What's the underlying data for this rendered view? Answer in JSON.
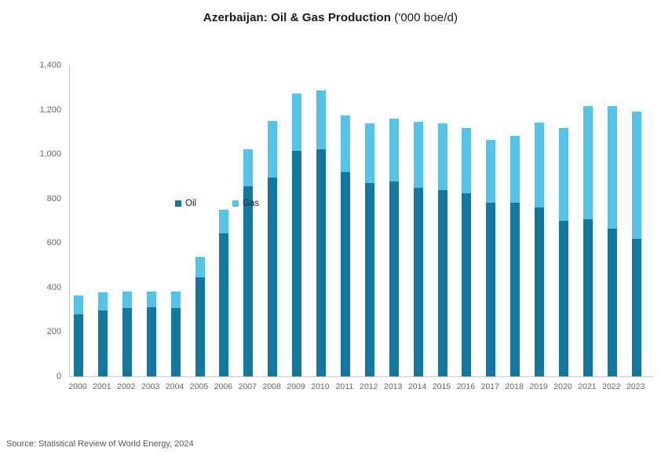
{
  "title": {
    "main": "Azerbaijan: Oil & Gas Production",
    "unit": " ('000 boe/d)"
  },
  "source": "Source: Statistical Review of World Energy, 2024",
  "colors": {
    "oil": "#11799f",
    "gas": "#53c3e8",
    "axis_line": "#c9c9c9",
    "tick_text": "#666666"
  },
  "chart_data": {
    "type": "bar",
    "stacked": true,
    "title": "Azerbaijan: Oil & Gas Production ('000 boe/d)",
    "xlabel": "",
    "ylabel": "",
    "ylim": [
      0,
      1400
    ],
    "yticks": [
      0,
      200,
      400,
      600,
      800,
      1000,
      1200,
      1400
    ],
    "ytick_labels": [
      "0",
      "200",
      "400",
      "600",
      "800",
      "1,000",
      "1,200",
      "1,400"
    ],
    "grid": false,
    "legend_position": "inside-top-left",
    "categories": [
      "2000",
      "2001",
      "2002",
      "2003",
      "2004",
      "2005",
      "2006",
      "2007",
      "2008",
      "2009",
      "2010",
      "2011",
      "2012",
      "2013",
      "2014",
      "2015",
      "2016",
      "2017",
      "2018",
      "2019",
      "2020",
      "2021",
      "2022",
      "2023"
    ],
    "series": [
      {
        "name": "Oil",
        "color": "#11799f",
        "values": [
          280,
          297,
          306,
          311,
          309,
          444,
          645,
          857,
          896,
          1013,
          1023,
          919,
          871,
          878,
          847,
          837,
          825,
          782,
          780,
          760,
          699,
          707,
          665,
          619
        ]
      },
      {
        "name": "Gas",
        "color": "#53c3e8",
        "values": [
          85,
          82,
          77,
          72,
          74,
          92,
          106,
          166,
          253,
          260,
          265,
          256,
          268,
          281,
          298,
          302,
          291,
          281,
          301,
          383,
          419,
          509,
          553,
          574
        ]
      }
    ]
  }
}
